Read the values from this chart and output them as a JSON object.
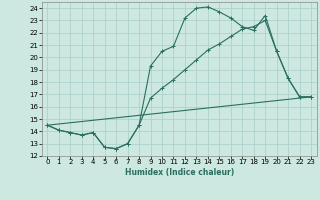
{
  "title": "",
  "xlabel": "Humidex (Indice chaleur)",
  "background_color": "#cce8e0",
  "grid_color": "#a8cfc8",
  "line_color": "#2a6e60",
  "xlim": [
    -0.5,
    23.5
  ],
  "ylim": [
    12,
    24.5
  ],
  "xticks": [
    0,
    1,
    2,
    3,
    4,
    5,
    6,
    7,
    8,
    9,
    10,
    11,
    12,
    13,
    14,
    15,
    16,
    17,
    18,
    19,
    20,
    21,
    22,
    23
  ],
  "yticks": [
    12,
    13,
    14,
    15,
    16,
    17,
    18,
    19,
    20,
    21,
    22,
    23,
    24
  ],
  "line1_x": [
    0,
    1,
    2,
    3,
    4,
    5,
    6,
    7,
    8,
    9,
    10,
    11,
    12,
    13,
    14,
    15,
    16,
    17,
    18,
    19,
    20,
    21,
    22,
    23
  ],
  "line1_y": [
    14.5,
    14.1,
    13.9,
    13.7,
    13.9,
    12.7,
    12.6,
    13.0,
    14.5,
    19.3,
    20.5,
    20.9,
    23.2,
    24.0,
    24.1,
    23.7,
    23.2,
    22.5,
    22.2,
    23.4,
    20.5,
    18.3,
    16.8,
    16.8
  ],
  "line2_x": [
    0,
    1,
    2,
    3,
    4,
    5,
    6,
    7,
    8,
    9,
    10,
    11,
    12,
    13,
    14,
    15,
    16,
    17,
    18,
    19,
    20,
    21,
    22,
    23
  ],
  "line2_y": [
    14.5,
    14.1,
    13.9,
    13.7,
    13.9,
    12.7,
    12.6,
    13.0,
    14.5,
    16.7,
    17.5,
    18.2,
    19.0,
    19.8,
    20.6,
    21.1,
    21.7,
    22.3,
    22.5,
    23.0,
    20.5,
    18.3,
    16.8,
    16.8
  ],
  "line3_x": [
    0,
    23
  ],
  "line3_y": [
    14.5,
    16.8
  ],
  "xlabel_fontsize": 5.5,
  "tick_fontsize": 5.0
}
